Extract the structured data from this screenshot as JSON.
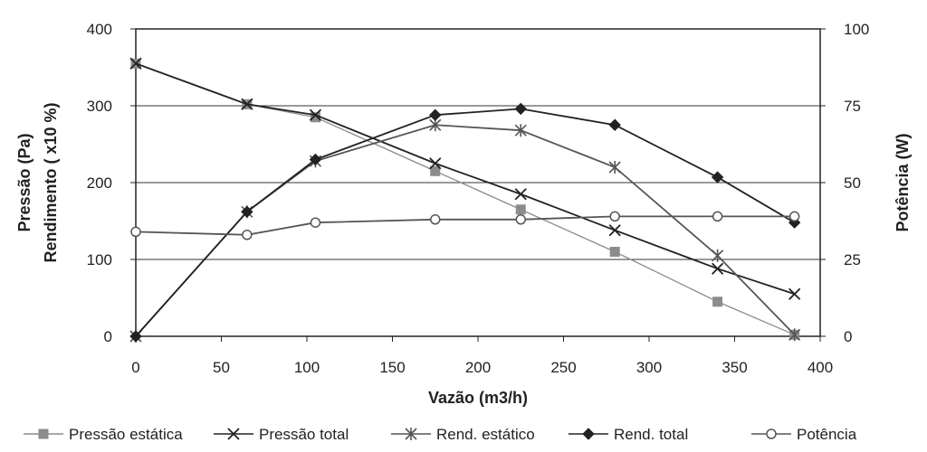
{
  "chart_data": {
    "type": "line",
    "xlabel": "Vazão (m3/h)",
    "ylabel_left_line1": "Pressão (Pa)",
    "ylabel_left_line2": "Rendimento ( x10 %)",
    "ylabel_right": "Potência (W)",
    "xlim": [
      0,
      400
    ],
    "ylim_left": [
      0,
      400
    ],
    "ylim_right": [
      0,
      100
    ],
    "x_ticks": [
      0,
      50,
      100,
      150,
      200,
      250,
      300,
      350,
      400
    ],
    "y_left_ticks": [
      0,
      100,
      200,
      300,
      400
    ],
    "y_right_ticks": [
      0,
      25,
      50,
      75,
      100
    ],
    "grid": "horizontal",
    "legend_position": "bottom",
    "series": [
      {
        "name": "Pressão estática",
        "axis": "left",
        "marker": "square",
        "color": "#8c8c8c",
        "x": [
          0,
          65,
          105,
          175,
          225,
          280,
          340,
          385
        ],
        "y": [
          355,
          302,
          285,
          215,
          165,
          110,
          45,
          2
        ]
      },
      {
        "name": "Pressão total",
        "axis": "left",
        "marker": "x",
        "color": "#222222",
        "x": [
          0,
          65,
          105,
          175,
          225,
          280,
          340,
          385
        ],
        "y": [
          355,
          302,
          288,
          225,
          185,
          138,
          88,
          55
        ]
      },
      {
        "name": "Rend. estático",
        "axis": "left",
        "marker": "asterisk",
        "color": "#555555",
        "x": [
          0,
          65,
          105,
          175,
          225,
          280,
          340,
          385
        ],
        "y": [
          0,
          162,
          228,
          275,
          268,
          220,
          105,
          2
        ]
      },
      {
        "name": "Rend. total",
        "axis": "left",
        "marker": "diamond",
        "color": "#222222",
        "x": [
          0,
          65,
          105,
          175,
          225,
          280,
          340,
          385
        ],
        "y": [
          0,
          162,
          230,
          288,
          296,
          275,
          207,
          148
        ]
      },
      {
        "name": "Potência",
        "axis": "right",
        "marker": "circle",
        "color": "#555555",
        "x": [
          0,
          65,
          105,
          175,
          225,
          280,
          340,
          385
        ],
        "y": [
          34,
          33,
          37,
          38,
          38,
          39,
          39,
          39
        ]
      }
    ]
  }
}
